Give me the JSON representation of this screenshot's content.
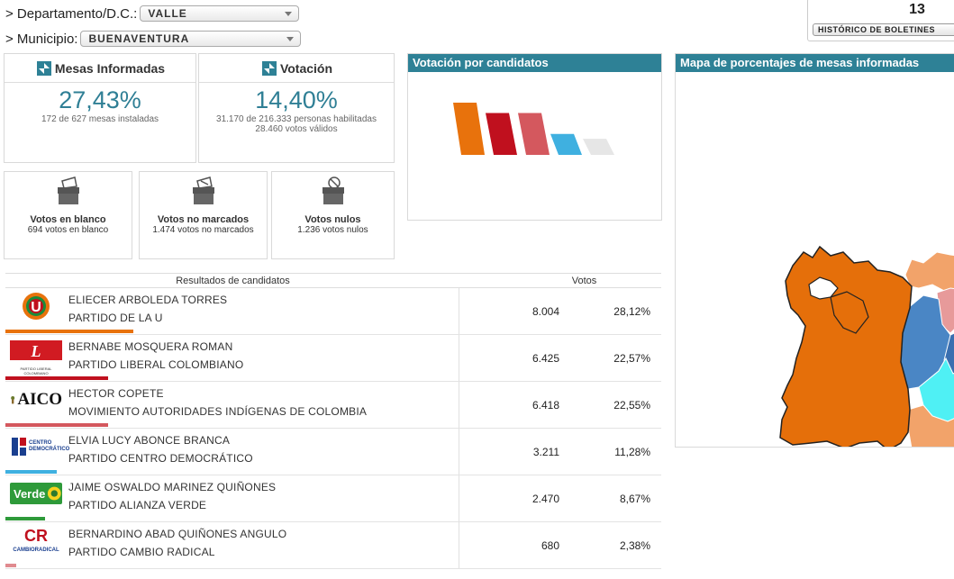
{
  "filters": {
    "departamento_label": "> Departamento/D.C.:",
    "departamento_value": "VALLE",
    "municipio_label": "> Municipio:",
    "municipio_value": "BUENAVENTURA"
  },
  "historico": {
    "number": "13",
    "button_label": "HISTÓRICO DE BOLETINES"
  },
  "mesas": {
    "title": "Mesas Informadas",
    "percent": "27,43%",
    "detail": "172 de 627 mesas instaladas"
  },
  "votacion": {
    "title": "Votación",
    "percent": "14,40%",
    "detail1": "31.170 de 216.333 personas habilitadas",
    "detail2": "28.460 votos válidos"
  },
  "votos_blanco": {
    "title": "Votos en blanco",
    "detail": "694 votos en blanco"
  },
  "votos_no_marcados": {
    "title": "Votos no marcados",
    "detail": "1.474 votos no marcados"
  },
  "votos_nulos": {
    "title": "Votos nulos",
    "detail": "1.236 votos nulos"
  },
  "chart_panel": {
    "title": "Votación por candidatos"
  },
  "map_panel": {
    "title": "Mapa de porcentajes de mesas informadas"
  },
  "chart_data": {
    "type": "bar",
    "categories": [
      "ELIECER ARBOLEDA TORRES",
      "BERNABE MOSQUERA ROMAN",
      "HECTOR COPETE",
      "ELVIA LUCY ABONCE BRANCA",
      "JAIME OSWALDO MARINEZ QUIÑONES"
    ],
    "values": [
      28.12,
      22.57,
      22.55,
      11.28,
      8.67
    ],
    "colors": [
      "#e8720c",
      "#c0101e",
      "#d4585e",
      "#3fb0e0",
      "#e6e6e6"
    ],
    "title": "",
    "xlabel": "",
    "ylabel": ""
  },
  "results": {
    "header_candidates": "Resultados de candidatos",
    "header_votes": "Votos",
    "rows": [
      {
        "candidate": "ELIECER ARBOLEDA TORRES",
        "party": "PARTIDO DE LA U",
        "votes": "8.004",
        "percent": "28,12%",
        "color": "#e8720c",
        "share": 0.2812,
        "logo": "partido-de-la-u-logo"
      },
      {
        "candidate": "BERNABE MOSQUERA ROMAN",
        "party": "PARTIDO LIBERAL COLOMBIANO",
        "votes": "6.425",
        "percent": "22,57%",
        "color": "#c0101e",
        "share": 0.2257,
        "logo": "partido-liberal-logo",
        "logo_text": "PARTIDO LIBERAL COLOMBIANO"
      },
      {
        "candidate": "HECTOR COPETE",
        "party": "MOVIMIENTO AUTORIDADES INDÍGENAS DE COLOMBIA",
        "votes": "6.418",
        "percent": "22,55%",
        "color": "#d4585e",
        "share": 0.2255,
        "logo": "aico-logo",
        "logo_text": "AICO"
      },
      {
        "candidate": "ELVIA LUCY ABONCE BRANCA",
        "party": "PARTIDO CENTRO DEMOCRÁTICO",
        "votes": "3.211",
        "percent": "11,28%",
        "color": "#3fb0e0",
        "share": 0.1128,
        "logo": "centro-democratico-logo",
        "logo_text": "CENTRO DEMOCRÁTICO"
      },
      {
        "candidate": "JAIME OSWALDO MARINEZ QUIÑONES",
        "party": "PARTIDO ALIANZA VERDE",
        "votes": "2.470",
        "percent": "8,67%",
        "color": "#2e9a3a",
        "share": 0.0867,
        "logo": "alianza-verde-logo",
        "logo_text": "Verde"
      },
      {
        "candidate": "BERNARDINO ABAD QUIÑONES ANGULO",
        "party": "PARTIDO CAMBIO RADICAL",
        "votes": "680",
        "percent": "2,38%",
        "color": "#e08a8f",
        "share": 0.0238,
        "logo": "cambio-radical-logo",
        "logo_text": "CAMBIORADICAL"
      }
    ]
  }
}
